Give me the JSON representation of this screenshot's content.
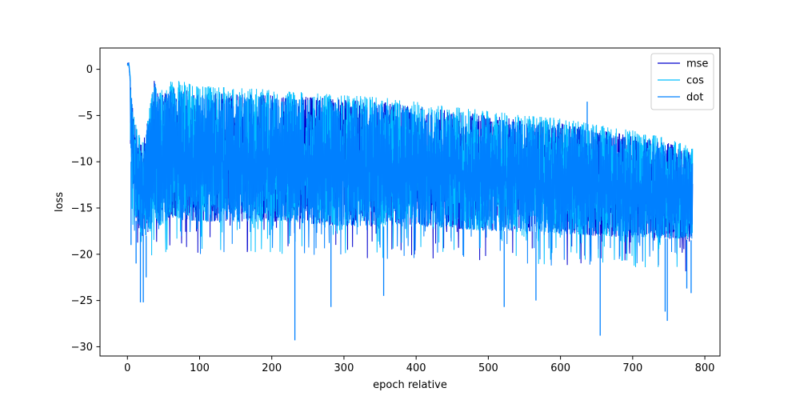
{
  "chart_data": {
    "type": "line",
    "title": "",
    "xlabel": "epoch relative",
    "ylabel": "loss",
    "xlim": [
      -38,
      821
    ],
    "ylim": [
      -31,
      2.3
    ],
    "xticks": [
      0,
      100,
      200,
      300,
      400,
      500,
      600,
      700,
      800
    ],
    "yticks": [
      0,
      -5,
      -10,
      -15,
      -20,
      -25,
      -30
    ],
    "xtick_labels": [
      "0",
      "100",
      "200",
      "300",
      "400",
      "500",
      "600",
      "700",
      "800"
    ],
    "ytick_labels": [
      "0",
      "−5",
      "−10",
      "−15",
      "−20",
      "−25",
      "−30"
    ],
    "grid": false,
    "legend_position": "top-right",
    "series": [
      {
        "name": "mse",
        "color": "#0000cd",
        "envelope": {
          "x": [
            0,
            2,
            4,
            6,
            10,
            20,
            30,
            38,
            45,
            60,
            100,
            150,
            200,
            250,
            300,
            350,
            400,
            450,
            500,
            550,
            600,
            650,
            700,
            750,
            783
          ],
          "upper": [
            0.8,
            0.8,
            -1,
            -3,
            -6,
            -8.3,
            -5,
            -0.8,
            -3,
            -2,
            -2.5,
            -2.7,
            -2.8,
            -3,
            -3.3,
            -3.5,
            -4,
            -4.5,
            -5,
            -5.5,
            -5.8,
            -6.5,
            -7.2,
            -8,
            -9
          ],
          "lower": [
            0.5,
            -2,
            -8,
            -12,
            -16,
            -18,
            -18,
            -16,
            -17,
            -16,
            -16.5,
            -16.5,
            -16.5,
            -16.7,
            -17,
            -17,
            -17,
            -17.2,
            -17.5,
            -17.5,
            -17.8,
            -18,
            -18.2,
            -18.3,
            -18.5
          ]
        }
      },
      {
        "name": "cos",
        "color": "#00bfff",
        "envelope": {
          "x": [
            0,
            2,
            4,
            6,
            10,
            20,
            30,
            38,
            45,
            60,
            100,
            150,
            200,
            250,
            300,
            350,
            400,
            450,
            500,
            550,
            600,
            650,
            700,
            750,
            783
          ],
          "upper": [
            0.8,
            0.8,
            -0.5,
            -2.5,
            -5.5,
            -8,
            -4.5,
            -0.5,
            -2.5,
            -1,
            -1.8,
            -2,
            -2.2,
            -2.5,
            -2.8,
            -3,
            -3.5,
            -4,
            -4.5,
            -5,
            -5.3,
            -6,
            -6.6,
            -7.5,
            -8.5
          ],
          "lower": [
            0.5,
            -2,
            -8,
            -12,
            -16,
            -18,
            -18,
            -16,
            -17,
            -16,
            -16.5,
            -16.5,
            -16.5,
            -16.7,
            -17,
            -17,
            -17,
            -17.2,
            -17.5,
            -17.5,
            -17.8,
            -18,
            -18.2,
            -18.3,
            -18.5
          ]
        }
      },
      {
        "name": "dot",
        "color": "#0080ff",
        "envelope": {
          "x": [
            0,
            2,
            4,
            6,
            10,
            20,
            30,
            38,
            45,
            60,
            100,
            150,
            200,
            250,
            300,
            350,
            400,
            450,
            500,
            550,
            600,
            650,
            700,
            750,
            783
          ],
          "upper": [
            0.8,
            0.8,
            -1.2,
            -3.2,
            -6.2,
            -8.5,
            -5.2,
            -1,
            -3.2,
            -2.3,
            -2.8,
            -3,
            -3.1,
            -3.3,
            -3.6,
            -3.8,
            -4.3,
            -4.8,
            -5.3,
            -5.8,
            -6,
            -6.8,
            -7.5,
            -8.3,
            -9.3
          ],
          "lower": [
            0.5,
            -2,
            -8,
            -12,
            -16,
            -18,
            -18,
            -16,
            -17,
            -16,
            -16.5,
            -16.5,
            -16.5,
            -16.7,
            -17,
            -17,
            -17,
            -17.2,
            -17.5,
            -17.5,
            -17.8,
            -18,
            -18.2,
            -18.3,
            -18.5
          ],
          "spikes": [
            {
              "x": 5,
              "y": -19
            },
            {
              "x": 12,
              "y": -21
            },
            {
              "x": 18,
              "y": -25.2
            },
            {
              "x": 22,
              "y": -25.2
            },
            {
              "x": 26,
              "y": -22.5
            },
            {
              "x": 232,
              "y": -29.3
            },
            {
              "x": 282,
              "y": -25.7
            },
            {
              "x": 355,
              "y": -24.5
            },
            {
              "x": 522,
              "y": -25.7
            },
            {
              "x": 566,
              "y": -25
            },
            {
              "x": 655,
              "y": -28.8
            },
            {
              "x": 745,
              "y": -26.2
            },
            {
              "x": 748,
              "y": -27.2
            },
            {
              "x": 775,
              "y": -23.7
            },
            {
              "x": 781,
              "y": -24.2
            },
            {
              "x": 637,
              "y": -3.5
            }
          ]
        }
      }
    ]
  }
}
